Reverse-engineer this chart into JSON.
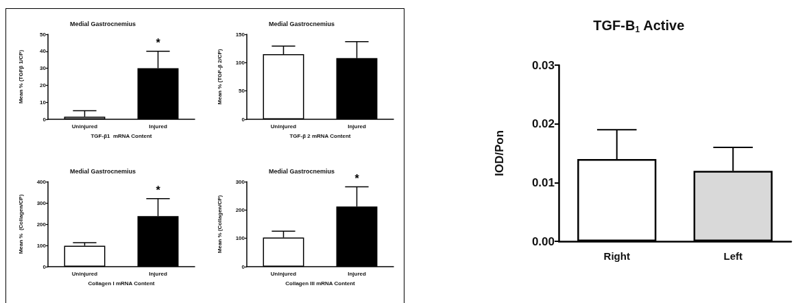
{
  "chart_data": [
    {
      "type": "bar",
      "title": "Medial Gastrocnemius",
      "xlabel": "TGF-β1  mRNA Content",
      "ylabel": "Mean % (TGFβ 1/CP)",
      "categories": [
        "Uninjured",
        "Injured"
      ],
      "values": [
        1.5,
        30
      ],
      "errors": [
        3.5,
        10
      ],
      "colors": [
        "#ffffff",
        "#000000"
      ],
      "ylim": [
        0,
        50
      ],
      "yticks": [
        0,
        10,
        20,
        30,
        40,
        50
      ],
      "annotations": [
        {
          "text": "*",
          "x": "Injured",
          "y": 40
        }
      ]
    },
    {
      "type": "bar",
      "title": "Medial Gastrocnemius",
      "xlabel": "TGF-β 2 mRNA Content",
      "ylabel": "Mean % (TGF-β 2/CP)",
      "categories": [
        "Uninjured",
        "Injured"
      ],
      "values": [
        115,
        108
      ],
      "errors": [
        14,
        29
      ],
      "colors": [
        "#ffffff",
        "#000000"
      ],
      "ylim": [
        0,
        150
      ],
      "yticks": [
        0,
        50,
        100,
        150
      ]
    },
    {
      "type": "bar",
      "title": "Medial Gastrocnemius",
      "xlabel": "Collagen I mRNA Content",
      "ylabel": "Mean %  (Collagen/CP)",
      "categories": [
        "Uninjured",
        "Injured"
      ],
      "values": [
        98,
        238
      ],
      "errors": [
        15,
        82
      ],
      "colors": [
        "#ffffff",
        "#000000"
      ],
      "ylim": [
        0,
        400
      ],
      "yticks": [
        0,
        100,
        200,
        300,
        400
      ],
      "annotations": [
        {
          "text": "*",
          "x": "Injured",
          "y": 320
        }
      ]
    },
    {
      "type": "bar",
      "title": "Medial Gastrocnemius",
      "xlabel": "Collagen III mRNA Content",
      "ylabel": "Mean % (Collagen/CP)",
      "categories": [
        "Uninjured",
        "Injured"
      ],
      "values": [
        103,
        212
      ],
      "errors": [
        22,
        70
      ],
      "colors": [
        "#ffffff",
        "#000000"
      ],
      "ylim": [
        0,
        300
      ],
      "yticks": [
        0,
        100,
        200,
        300
      ],
      "annotations": [
        {
          "text": "*",
          "x": "Injured",
          "y": 282
        }
      ]
    },
    {
      "type": "bar",
      "title": "TGF-B$_{1}$ Active",
      "ylabel": "IOD/Pon",
      "categories": [
        "Right",
        "Left"
      ],
      "values": [
        0.014,
        0.012
      ],
      "errors": [
        0.005,
        0.004
      ],
      "colors": [
        "#ffffff",
        "#d9d9d9"
      ],
      "ylim": [
        0,
        0.03
      ],
      "yticks": [
        {
          "value": 0,
          "label": "0.00"
        },
        0.01,
        0.02,
        0.03
      ]
    }
  ]
}
